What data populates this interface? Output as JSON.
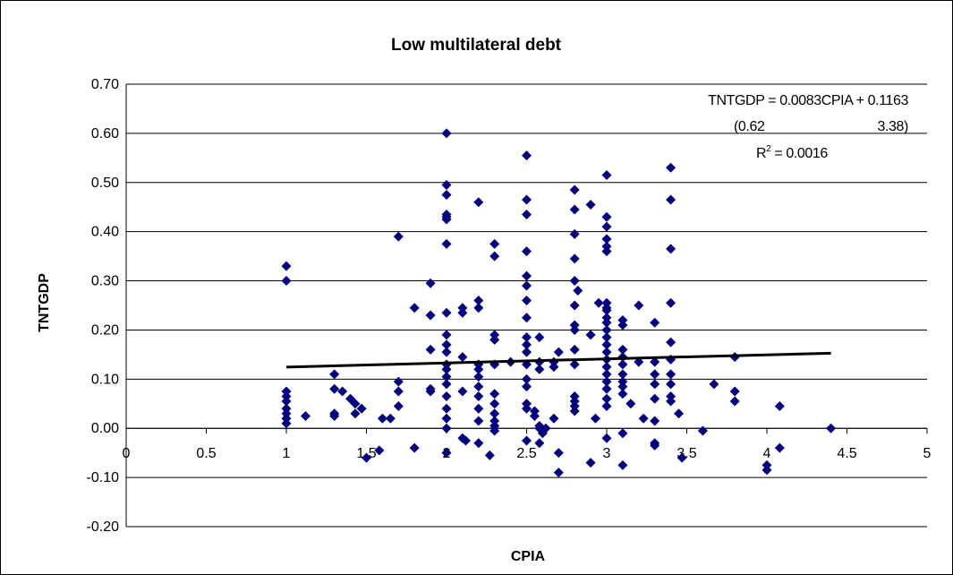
{
  "chart_data": {
    "type": "scatter",
    "title": "Low multilateral debt",
    "xlabel": "CPIA",
    "ylabel": "TNTGDP",
    "xlim": [
      0,
      5
    ],
    "ylim": [
      -0.2,
      0.7
    ],
    "x_ticks": [
      "0",
      "0.5",
      "1",
      "1.5",
      "2",
      "2.5",
      "3",
      "3.5",
      "4",
      "4.5",
      "5"
    ],
    "y_ticks": [
      "0.70",
      "0.60",
      "0.50",
      "0.40",
      "0.30",
      "0.20",
      "0.10",
      "0.00",
      "-0.10",
      "-0.20"
    ],
    "grid": "horizontal",
    "marker_color": "#000080",
    "trendline": {
      "slope": 0.0083,
      "intercept": 0.1163,
      "x_range": [
        1,
        4.4
      ],
      "color": "#000000"
    },
    "annotations": {
      "equation": "TNTGDP = 0.0083CPIA + 0.1163",
      "t_stat_left": "(0.62",
      "t_stat_right": "3.38)",
      "r2_prefix": "R",
      "r2_sup": "2",
      "r2_value": " = 0.0016"
    },
    "points": [
      [
        1,
        0.33
      ],
      [
        1,
        0.3
      ],
      [
        1,
        0.075
      ],
      [
        1,
        0.065
      ],
      [
        1,
        0.055
      ],
      [
        1,
        0.04
      ],
      [
        1,
        0.03
      ],
      [
        1,
        0.02
      ],
      [
        1,
        0.01
      ],
      [
        1.12,
        0.025
      ],
      [
        1.3,
        0.11
      ],
      [
        1.3,
        0.08
      ],
      [
        1.3,
        0.03
      ],
      [
        1.3,
        0.025
      ],
      [
        1.35,
        0.075
      ],
      [
        1.4,
        0.06
      ],
      [
        1.43,
        0.05
      ],
      [
        1.43,
        0.03
      ],
      [
        1.47,
        0.04
      ],
      [
        1.5,
        -0.06
      ],
      [
        1.58,
        -0.045
      ],
      [
        1.6,
        0.02
      ],
      [
        1.65,
        0.02
      ],
      [
        1.7,
        0.095
      ],
      [
        1.7,
        0.075
      ],
      [
        1.7,
        0.045
      ],
      [
        1.7,
        0.39
      ],
      [
        1.8,
        0.245
      ],
      [
        1.8,
        -0.04
      ],
      [
        1.9,
        0.295
      ],
      [
        1.9,
        0.23
      ],
      [
        1.9,
        0.16
      ],
      [
        1.9,
        0.08
      ],
      [
        1.9,
        0.075
      ],
      [
        2,
        0.6
      ],
      [
        2,
        0.495
      ],
      [
        2,
        0.475
      ],
      [
        2,
        0.435
      ],
      [
        2,
        0.43
      ],
      [
        2,
        0.425
      ],
      [
        2,
        0.375
      ],
      [
        2,
        0.235
      ],
      [
        2,
        0.19
      ],
      [
        2,
        0.17
      ],
      [
        2,
        0.155
      ],
      [
        2,
        0.13
      ],
      [
        2,
        0.12
      ],
      [
        2,
        0.105
      ],
      [
        2,
        0.09
      ],
      [
        2,
        0.065
      ],
      [
        2,
        0.04
      ],
      [
        2,
        0.02
      ],
      [
        2,
        0.0
      ],
      [
        2,
        -0.05
      ],
      [
        2.1,
        0.245
      ],
      [
        2.1,
        0.235
      ],
      [
        2.1,
        0.145
      ],
      [
        2.1,
        0.075
      ],
      [
        2.1,
        -0.02
      ],
      [
        2.12,
        -0.025
      ],
      [
        2.2,
        0.46
      ],
      [
        2.2,
        0.26
      ],
      [
        2.2,
        0.245
      ],
      [
        2.2,
        0.13
      ],
      [
        2.2,
        0.12
      ],
      [
        2.2,
        0.105
      ],
      [
        2.2,
        0.085
      ],
      [
        2.2,
        0.065
      ],
      [
        2.2,
        0.04
      ],
      [
        2.2,
        0.015
      ],
      [
        2.2,
        -0.03
      ],
      [
        2.27,
        -0.055
      ],
      [
        2.3,
        0.375
      ],
      [
        2.3,
        0.35
      ],
      [
        2.3,
        0.19
      ],
      [
        2.3,
        0.18
      ],
      [
        2.3,
        0.13
      ],
      [
        2.3,
        0.07
      ],
      [
        2.3,
        0.05
      ],
      [
        2.3,
        0.03
      ],
      [
        2.3,
        0.015
      ],
      [
        2.3,
        0.005
      ],
      [
        2.3,
        -0.005
      ],
      [
        2.4,
        0.135
      ],
      [
        2.5,
        0.555
      ],
      [
        2.5,
        0.465
      ],
      [
        2.5,
        0.435
      ],
      [
        2.5,
        0.36
      ],
      [
        2.5,
        0.31
      ],
      [
        2.5,
        0.29
      ],
      [
        2.5,
        0.26
      ],
      [
        2.5,
        0.225
      ],
      [
        2.5,
        0.185
      ],
      [
        2.5,
        0.17
      ],
      [
        2.5,
        0.155
      ],
      [
        2.5,
        0.13
      ],
      [
        2.5,
        0.1
      ],
      [
        2.5,
        0.085
      ],
      [
        2.5,
        0.05
      ],
      [
        2.5,
        0.04
      ],
      [
        2.5,
        -0.025
      ],
      [
        2.55,
        0.035
      ],
      [
        2.55,
        0.025
      ],
      [
        2.58,
        0.185
      ],
      [
        2.58,
        0.135
      ],
      [
        2.58,
        0.12
      ],
      [
        2.58,
        0.005
      ],
      [
        2.58,
        0.0
      ],
      [
        2.58,
        -0.03
      ],
      [
        2.6,
        -0.01
      ],
      [
        2.62,
        0.0
      ],
      [
        2.67,
        0.135
      ],
      [
        2.67,
        0.125
      ],
      [
        2.67,
        0.02
      ],
      [
        2.7,
        -0.05
      ],
      [
        2.7,
        -0.09
      ],
      [
        2.7,
        0.155
      ],
      [
        2.8,
        0.485
      ],
      [
        2.8,
        0.445
      ],
      [
        2.8,
        0.395
      ],
      [
        2.8,
        0.345
      ],
      [
        2.8,
        0.3
      ],
      [
        2.8,
        0.25
      ],
      [
        2.8,
        0.21
      ],
      [
        2.8,
        0.2
      ],
      [
        2.8,
        0.16
      ],
      [
        2.8,
        0.13
      ],
      [
        2.8,
        0.065
      ],
      [
        2.8,
        0.055
      ],
      [
        2.8,
        0.045
      ],
      [
        2.8,
        0.035
      ],
      [
        2.82,
        0.28
      ],
      [
        2.9,
        0.455
      ],
      [
        2.9,
        0.19
      ],
      [
        2.9,
        -0.07
      ],
      [
        2.93,
        0.02
      ],
      [
        3,
        0.515
      ],
      [
        3,
        0.43
      ],
      [
        3,
        0.41
      ],
      [
        3,
        0.385
      ],
      [
        3,
        0.37
      ],
      [
        3,
        0.36
      ],
      [
        3,
        0.255
      ],
      [
        3,
        0.245
      ],
      [
        3,
        0.24
      ],
      [
        3,
        0.225
      ],
      [
        3,
        0.215
      ],
      [
        3,
        0.2
      ],
      [
        3,
        0.185
      ],
      [
        3,
        0.17
      ],
      [
        3,
        0.155
      ],
      [
        3,
        0.14
      ],
      [
        3,
        0.125
      ],
      [
        3,
        0.11
      ],
      [
        3,
        0.095
      ],
      [
        3,
        0.08
      ],
      [
        3,
        0.06
      ],
      [
        3,
        0.045
      ],
      [
        3,
        -0.02
      ],
      [
        2.95,
        0.255
      ],
      [
        3.1,
        0.22
      ],
      [
        3.1,
        0.21
      ],
      [
        3.1,
        0.16
      ],
      [
        3.1,
        0.145
      ],
      [
        3.1,
        0.13
      ],
      [
        3.1,
        0.11
      ],
      [
        3.1,
        0.095
      ],
      [
        3.1,
        0.085
      ],
      [
        3.1,
        0.07
      ],
      [
        3.1,
        -0.01
      ],
      [
        3.1,
        -0.075
      ],
      [
        3.15,
        0.05
      ],
      [
        3.2,
        0.25
      ],
      [
        3.2,
        0.135
      ],
      [
        3.23,
        0.02
      ],
      [
        3.3,
        0.215
      ],
      [
        3.3,
        0.135
      ],
      [
        3.3,
        0.11
      ],
      [
        3.3,
        0.09
      ],
      [
        3.3,
        0.06
      ],
      [
        3.3,
        0.015
      ],
      [
        3.3,
        -0.03
      ],
      [
        3.3,
        -0.035
      ],
      [
        3.4,
        0.53
      ],
      [
        3.4,
        0.465
      ],
      [
        3.4,
        0.365
      ],
      [
        3.4,
        0.255
      ],
      [
        3.4,
        0.175
      ],
      [
        3.4,
        0.14
      ],
      [
        3.4,
        0.11
      ],
      [
        3.4,
        0.09
      ],
      [
        3.4,
        0.065
      ],
      [
        3.4,
        0.055
      ],
      [
        3.45,
        0.03
      ],
      [
        3.47,
        -0.06
      ],
      [
        3.6,
        -0.005
      ],
      [
        3.67,
        0.09
      ],
      [
        3.8,
        0.145
      ],
      [
        3.8,
        0.075
      ],
      [
        3.8,
        0.055
      ],
      [
        4,
        -0.075
      ],
      [
        4,
        -0.085
      ],
      [
        4.08,
        0.045
      ],
      [
        4.08,
        -0.04
      ],
      [
        4.4,
        0.0
      ]
    ]
  }
}
